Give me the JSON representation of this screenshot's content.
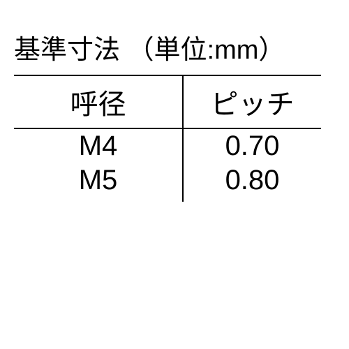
{
  "title": "基準寸法 （単位:mm）",
  "table": {
    "columns": [
      "呼径",
      "ピッチ"
    ],
    "rows": [
      [
        "M4",
        "0.70"
      ],
      [
        "M5",
        "0.80"
      ]
    ],
    "border_color": "#000000",
    "border_width": 2,
    "text_color": "#000000",
    "background_color": "#ffffff",
    "header_fontsize": 40,
    "cell_fontsize": 40,
    "col_widths": [
      "55%",
      "45%"
    ]
  }
}
